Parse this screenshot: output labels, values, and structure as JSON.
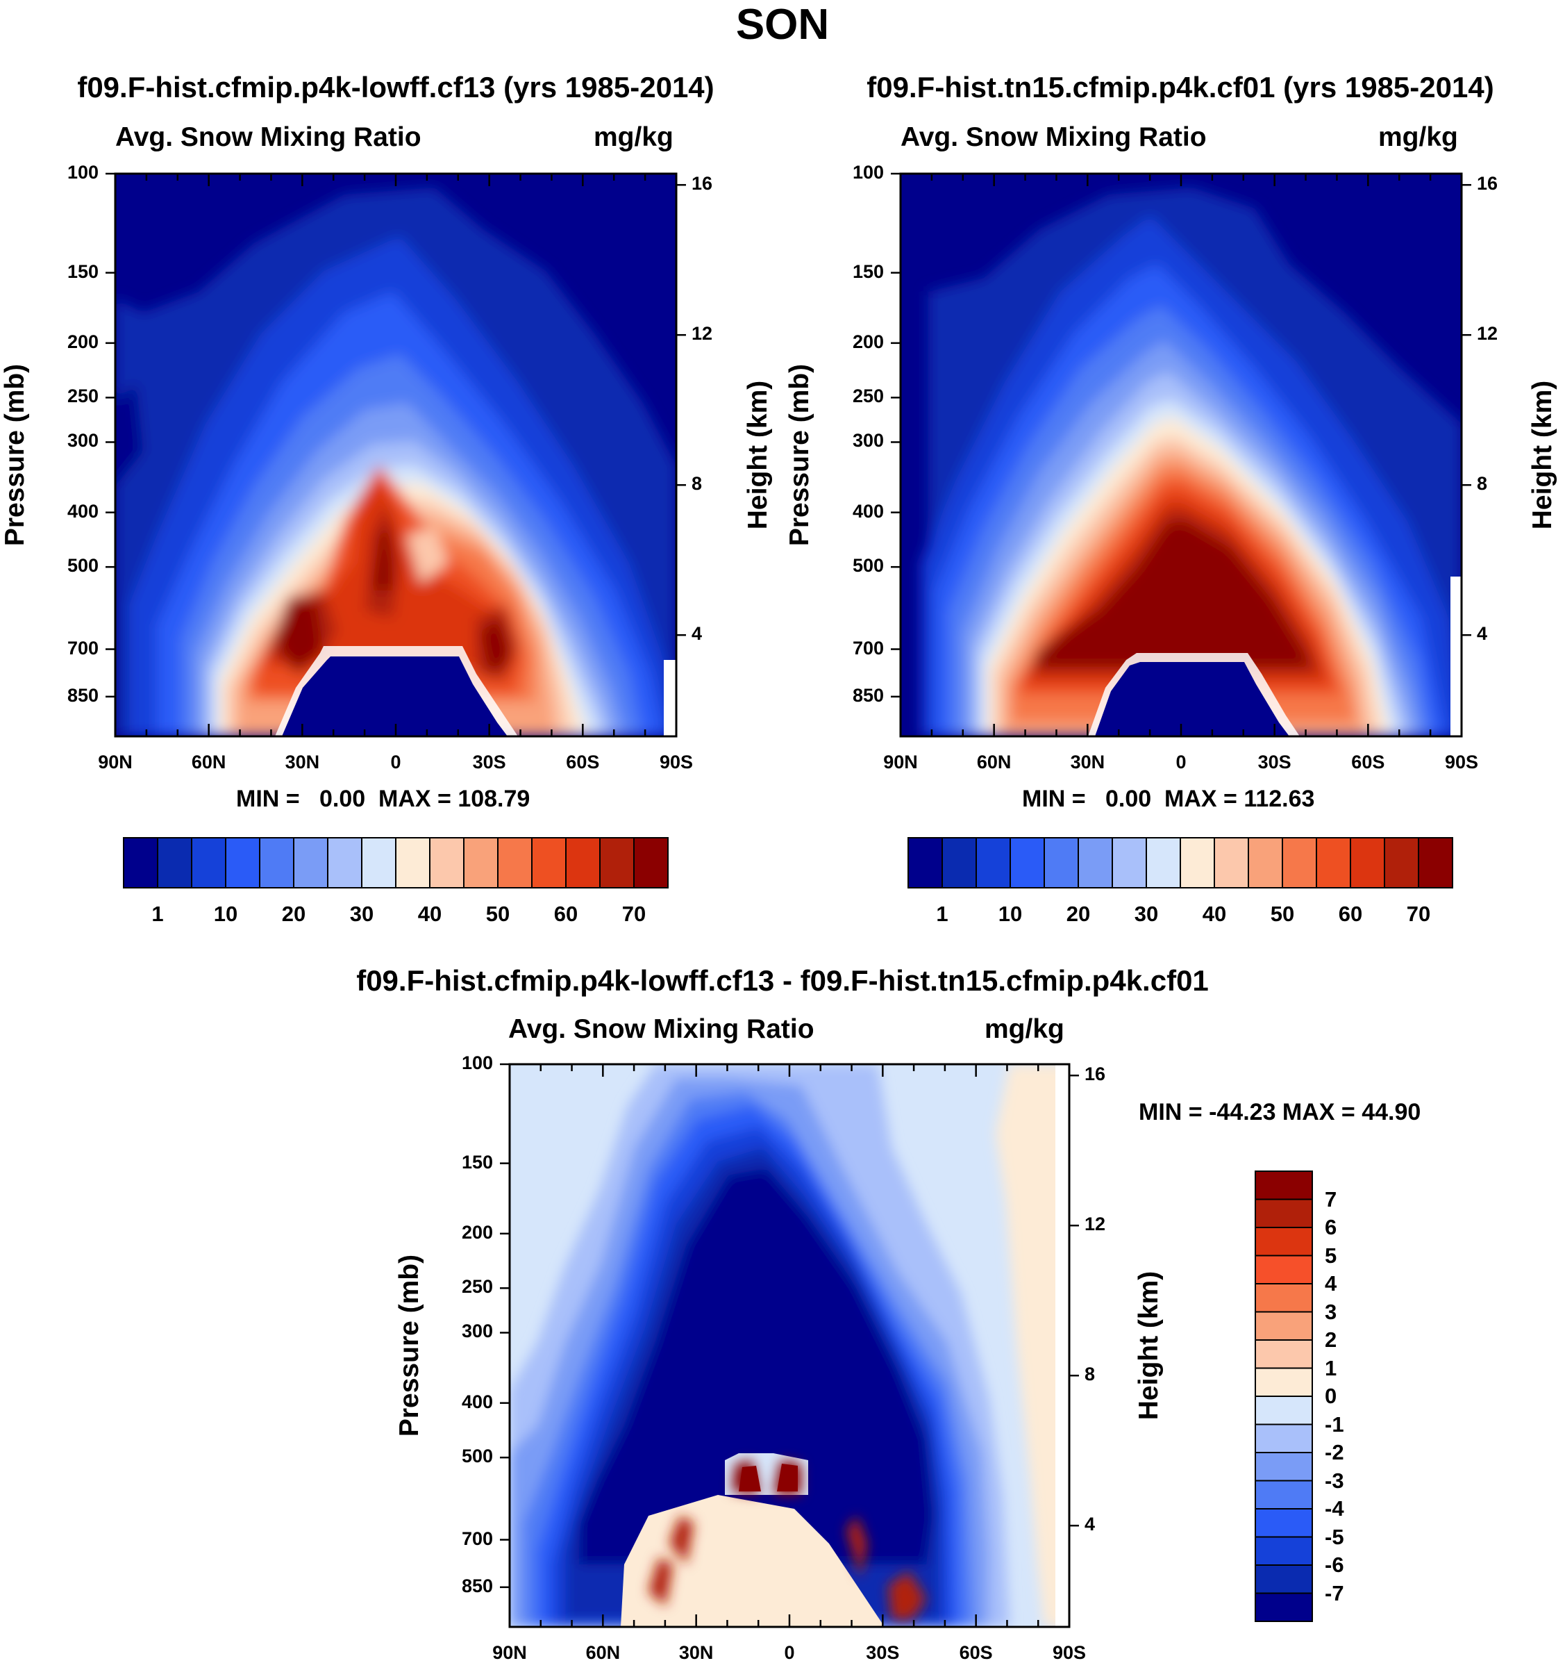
{
  "page": {
    "title": "SON"
  },
  "chart_data": [
    {
      "type": "heatmap",
      "title": "f09.F-hist.cfmip.p4k-lowff.cf13 (yrs 1985-2014)",
      "variable": "Avg. Snow Mixing Ratio",
      "units": "mg/kg",
      "xlabel": "",
      "ylabel": "Pressure (mb)",
      "ylabel_right": "Height (km)",
      "x_ticks": [
        "90N",
        "60N",
        "30N",
        "0",
        "30S",
        "60S",
        "90S"
      ],
      "y_ticks": [
        "100",
        "150",
        "200",
        "250",
        "300",
        "400",
        "500",
        "700",
        "850"
      ],
      "y_ticks_right": [
        "16",
        "12",
        "8",
        "4"
      ],
      "y_scale": "log-pressure",
      "stats": "MIN =   0.00  MAX = 108.79",
      "colorbar": {
        "orientation": "horizontal",
        "labels": [
          "1",
          "10",
          "20",
          "30",
          "40",
          "50",
          "60",
          "70"
        ],
        "colors": [
          "#00008c",
          "#0a2bb0",
          "#1541d9",
          "#2a5bf7",
          "#4f7bf5",
          "#7a9cf6",
          "#a9c0fa",
          "#d6e6fb",
          "#fdebd6",
          "#fcc8ac",
          "#f9a27a",
          "#f6784a",
          "#ee5022",
          "#dc3510",
          "#b0200a",
          "#8b0000"
        ]
      }
    },
    {
      "type": "heatmap",
      "title": "f09.F-hist.tn15.cfmip.p4k.cf01 (yrs 1985-2014)",
      "variable": "Avg. Snow Mixing Ratio",
      "units": "mg/kg",
      "xlabel": "",
      "ylabel": "Pressure (mb)",
      "ylabel_right": "Height (km)",
      "x_ticks": [
        "90N",
        "60N",
        "30N",
        "0",
        "30S",
        "60S",
        "90S"
      ],
      "y_ticks": [
        "100",
        "150",
        "200",
        "250",
        "300",
        "400",
        "500",
        "700",
        "850"
      ],
      "y_ticks_right": [
        "16",
        "12",
        "8",
        "4"
      ],
      "y_scale": "log-pressure",
      "stats": "MIN =   0.00  MAX = 112.63",
      "colorbar": {
        "orientation": "horizontal",
        "labels": [
          "1",
          "10",
          "20",
          "30",
          "40",
          "50",
          "60",
          "70"
        ],
        "colors": [
          "#00008c",
          "#0a2bb0",
          "#1541d9",
          "#2a5bf7",
          "#4f7bf5",
          "#7a9cf6",
          "#a9c0fa",
          "#d6e6fb",
          "#fdebd6",
          "#fcc8ac",
          "#f9a27a",
          "#f6784a",
          "#ee5022",
          "#dc3510",
          "#b0200a",
          "#8b0000"
        ]
      }
    },
    {
      "type": "heatmap",
      "title": "f09.F-hist.cfmip.p4k-lowff.cf13 - f09.F-hist.tn15.cfmip.p4k.cf01",
      "variable": "Avg. Snow Mixing Ratio",
      "units": "mg/kg",
      "xlabel": "",
      "ylabel": "Pressure (mb)",
      "ylabel_right": "Height (km)",
      "x_ticks": [
        "90N",
        "60N",
        "30N",
        "0",
        "30S",
        "60S",
        "90S"
      ],
      "y_ticks": [
        "100",
        "150",
        "200",
        "250",
        "300",
        "400",
        "500",
        "700",
        "850"
      ],
      "y_ticks_right": [
        "16",
        "12",
        "8",
        "4"
      ],
      "y_scale": "log-pressure",
      "stats": "MIN = -44.23  MAX =  44.90",
      "colorbar": {
        "orientation": "vertical",
        "labels": [
          "7",
          "6",
          "5",
          "4",
          "3",
          "2",
          "1",
          "0",
          "-1",
          "-2",
          "-3",
          "-4",
          "-5",
          "-6",
          "-7"
        ],
        "colors": [
          "#8b0000",
          "#b0200a",
          "#dc3510",
          "#f6502a",
          "#f6784a",
          "#f9a27a",
          "#fcc8ac",
          "#fdebd6",
          "#d6e6fb",
          "#a9c0fa",
          "#7a9cf6",
          "#4f7bf5",
          "#2a5bf7",
          "#1541d9",
          "#0a2bb0",
          "#00008c"
        ]
      }
    }
  ]
}
